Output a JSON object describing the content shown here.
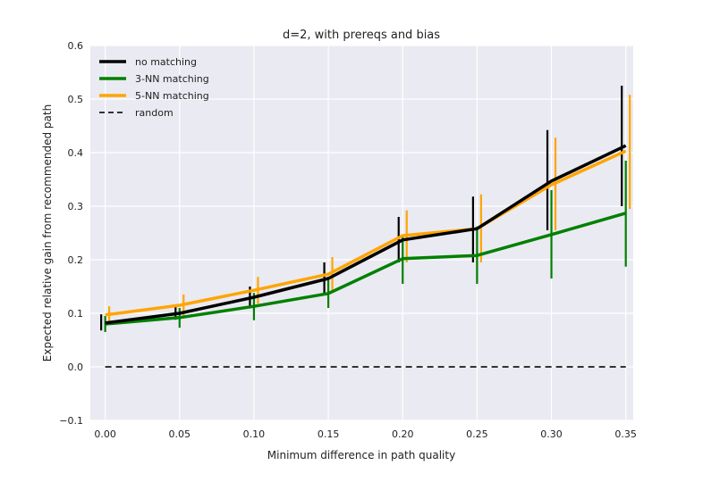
{
  "chart_data": {
    "type": "line",
    "title": "d=2, with prereqs and bias",
    "xlabel": "Minimum difference in path quality",
    "ylabel": "Expected relative gain from recommended path",
    "xlim": [
      -0.01,
      0.355
    ],
    "ylim": [
      -0.1,
      0.6
    ],
    "x_ticks": [
      "0.00",
      "0.05",
      "0.10",
      "0.15",
      "0.20",
      "0.25",
      "0.30",
      "0.35"
    ],
    "y_ticks": [
      "−0.1",
      "0.0",
      "0.1",
      "0.2",
      "0.3",
      "0.4",
      "0.5",
      "0.6"
    ],
    "x_tick_values": [
      0.0,
      0.05,
      0.1,
      0.15,
      0.2,
      0.25,
      0.3,
      0.35
    ],
    "y_tick_values": [
      -0.1,
      0.0,
      0.1,
      0.2,
      0.3,
      0.4,
      0.5,
      0.6
    ],
    "grid": true,
    "background": "#eaeaf2",
    "legend_position": "top-left",
    "x": [
      0.0,
      0.05,
      0.1,
      0.15,
      0.2,
      0.25,
      0.3,
      0.35
    ],
    "series": [
      {
        "name": "no matching",
        "color": "#000000",
        "style": "solid",
        "values": [
          0.082,
          0.1,
          0.13,
          0.165,
          0.237,
          0.258,
          0.347,
          0.413
        ],
        "err_low": [
          0.068,
          0.088,
          0.113,
          0.135,
          0.195,
          0.195,
          0.255,
          0.3
        ],
        "err_high": [
          0.098,
          0.113,
          0.15,
          0.195,
          0.28,
          0.318,
          0.442,
          0.525
        ]
      },
      {
        "name": "3-NN matching",
        "color": "#008000",
        "style": "solid",
        "values": [
          0.08,
          0.092,
          0.113,
          0.137,
          0.202,
          0.208,
          0.247,
          0.287
        ],
        "err_low": [
          0.065,
          0.073,
          0.087,
          0.11,
          0.155,
          0.155,
          0.165,
          0.187
        ],
        "err_high": [
          0.095,
          0.11,
          0.138,
          0.168,
          0.245,
          0.262,
          0.33,
          0.385
        ]
      },
      {
        "name": "5-NN matching",
        "color": "#ffa500",
        "style": "solid",
        "values": [
          0.097,
          0.115,
          0.143,
          0.173,
          0.245,
          0.258,
          0.34,
          0.403
        ],
        "err_low": [
          0.083,
          0.095,
          0.118,
          0.142,
          0.195,
          0.195,
          0.255,
          0.295
        ],
        "err_high": [
          0.113,
          0.135,
          0.168,
          0.205,
          0.292,
          0.322,
          0.428,
          0.508
        ]
      },
      {
        "name": "random",
        "color": "#333333",
        "style": "dashed",
        "values": [
          0,
          0,
          0,
          0,
          0,
          0,
          0,
          0
        ]
      }
    ]
  }
}
